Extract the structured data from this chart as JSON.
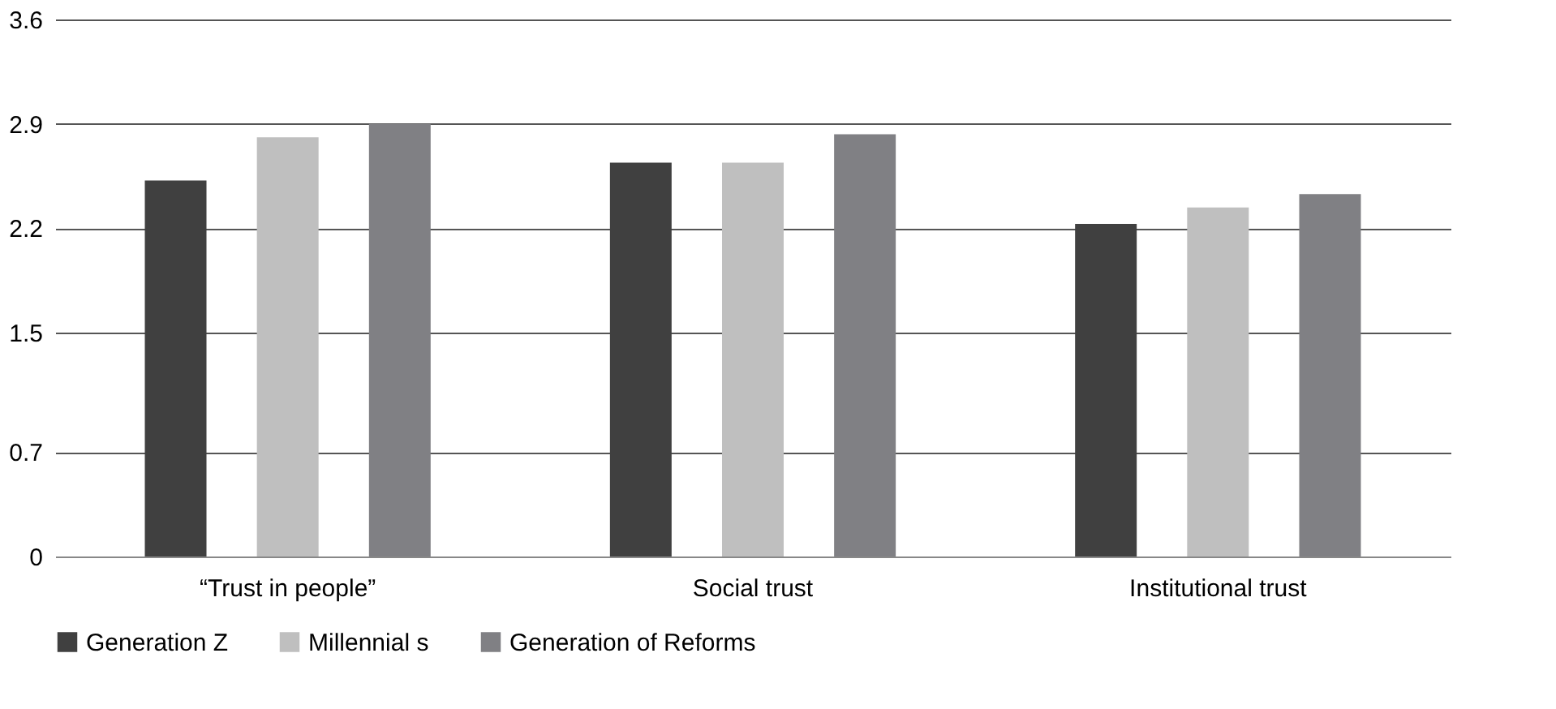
{
  "chart_data": {
    "type": "bar",
    "categories": [
      "“Trust in people”",
      "Social trust",
      "Institutional  trust"
    ],
    "series": [
      {
        "name": "Generation Z",
        "color": "#404040",
        "values": [
          2.52,
          2.64,
          2.23
        ]
      },
      {
        "name": "Millennial s",
        "color": "#bfbfbf",
        "values": [
          2.81,
          2.64,
          2.34
        ]
      },
      {
        "name": "Generation of Reforms",
        "color": "#808084",
        "values": [
          2.9,
          2.83,
          2.43
        ]
      }
    ],
    "ylim": [
      0,
      3.6
    ],
    "yticks": [
      0,
      0.7,
      1.5,
      2.2,
      2.9,
      3.6
    ],
    "grid": "y",
    "legend": "bottom"
  }
}
